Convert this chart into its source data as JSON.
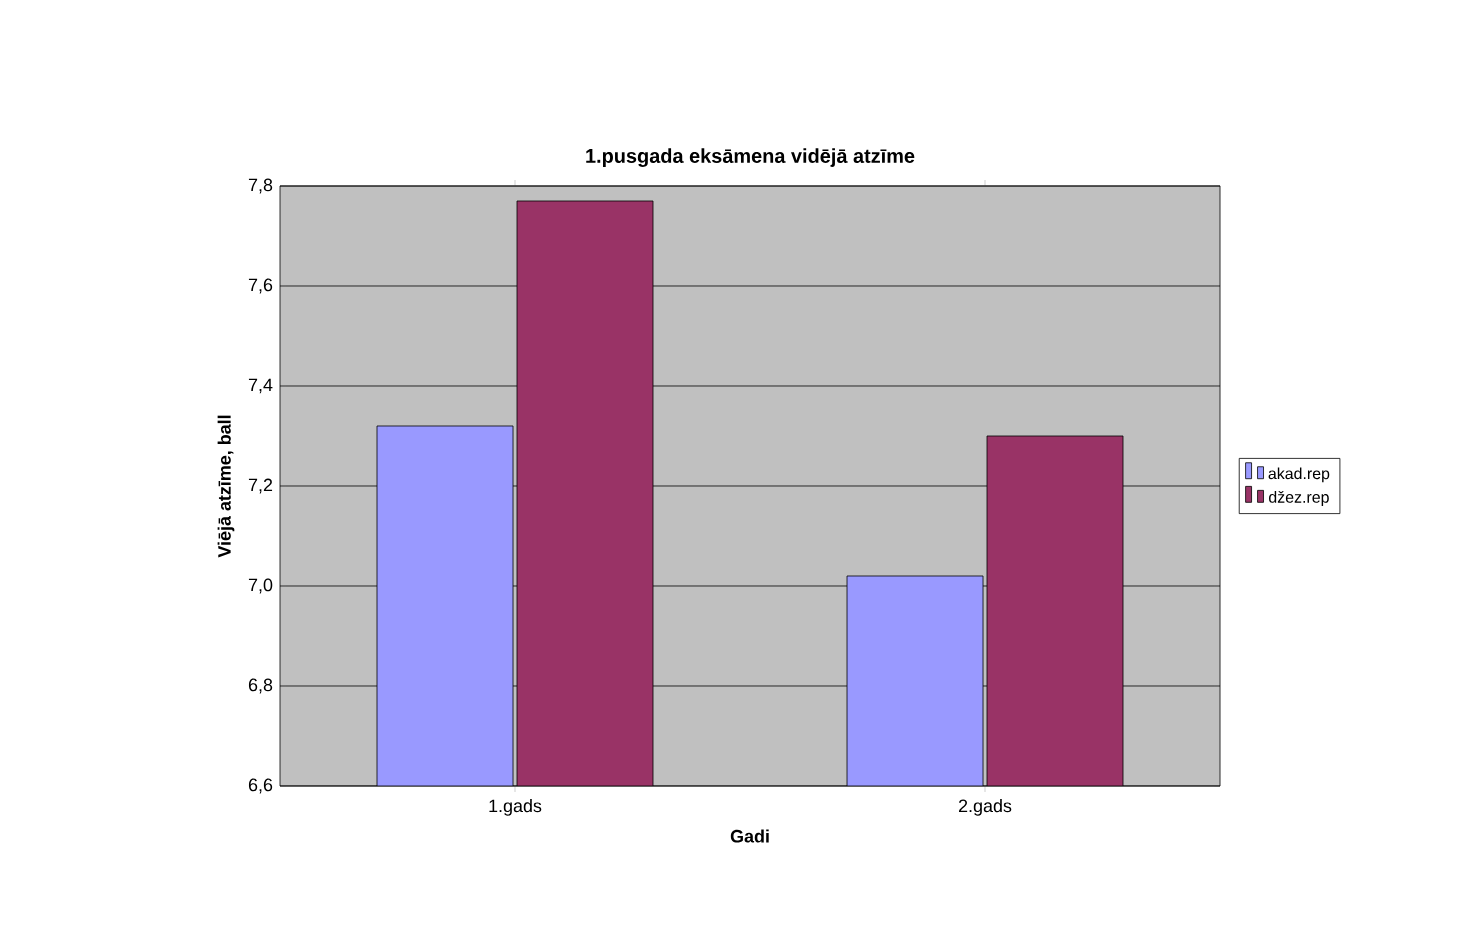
{
  "chart_data": {
    "type": "bar",
    "title": "1.pusgada eksāmena vidējā atzīme",
    "xlabel": "Gadi",
    "ylabel": "Viējā atzīme, ball",
    "categories": [
      "1.gads",
      "2.gads"
    ],
    "series": [
      {
        "name": "akad.rep",
        "color": "#9999ff",
        "values": [
          7.32,
          7.02
        ]
      },
      {
        "name": "džez.rep",
        "color": "#993366",
        "values": [
          7.77,
          7.3
        ]
      }
    ],
    "ylim": [
      6.6,
      7.8
    ],
    "yticks": [
      {
        "value": 6.6,
        "label": "6,6"
      },
      {
        "value": 6.8,
        "label": "6,8"
      },
      {
        "value": 7.0,
        "label": "7,0"
      },
      {
        "value": 7.2,
        "label": "7,2"
      },
      {
        "value": 7.4,
        "label": "7,4"
      },
      {
        "value": 7.6,
        "label": "7,6"
      },
      {
        "value": 7.8,
        "label": "7,8"
      }
    ],
    "grid": "y",
    "legend": "right"
  }
}
